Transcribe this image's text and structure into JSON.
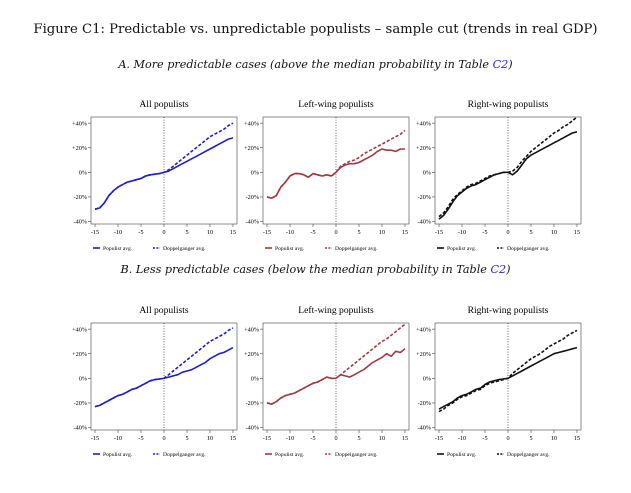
{
  "figure": {
    "title": "Figure C1:  Predictable vs. unpredictable populists – sample cut (trends in real GDP)",
    "panel_a": {
      "prefix": "A. More predictable cases (above the median probability in Table ",
      "ref": "C2",
      "suffix": ")"
    },
    "panel_b": {
      "prefix": "B. Less predictable cases (below the median probability in Table ",
      "ref": "C2",
      "suffix": ")"
    }
  },
  "colors": {
    "all": "#1f1fc8",
    "left": "#a03a42",
    "right": "#111111"
  },
  "chart_data": [
    {
      "type": "line",
      "panel": "A",
      "title": "All populists",
      "color_key": "all",
      "x": [
        -15,
        -14,
        -13,
        -12,
        -11,
        -10,
        -9,
        -8,
        -7,
        -6,
        -5,
        -4,
        -3,
        -2,
        -1,
        0,
        1,
        2,
        3,
        4,
        5,
        6,
        7,
        8,
        9,
        10,
        11,
        12,
        13,
        14,
        15
      ],
      "xticks": [
        -15,
        -10,
        -5,
        0,
        5,
        10,
        15
      ],
      "ylim": [
        -42,
        45
      ],
      "yticks": [
        -40,
        -20,
        0,
        20,
        40
      ],
      "ytick_labels": [
        "-40%",
        "-20%",
        "0%",
        "+20%",
        "+40%"
      ],
      "series": [
        {
          "name": "Populist avg.",
          "style": "solid",
          "values": [
            -30,
            -29,
            -25,
            -19,
            -15,
            -12,
            -10,
            -8,
            -7,
            -6,
            -5,
            -3,
            -2,
            -1.5,
            -1,
            0,
            1,
            3,
            5,
            7,
            9,
            11,
            13,
            15,
            17,
            19,
            21,
            23,
            25,
            27,
            28
          ]
        },
        {
          "name": "Doppelganger avg.",
          "style": "dashed",
          "values": [
            -30,
            -29,
            -25,
            -19,
            -15,
            -12,
            -10,
            -8,
            -7,
            -6,
            -5,
            -3,
            -2,
            -1.5,
            -1,
            0,
            2,
            5,
            8,
            11,
            14,
            17,
            20,
            23,
            26,
            29,
            31,
            33,
            35,
            38,
            40
          ]
        }
      ]
    },
    {
      "type": "line",
      "panel": "A",
      "title": "Left-wing populists",
      "color_key": "left",
      "x": [
        -15,
        -14,
        -13,
        -12,
        -11,
        -10,
        -9,
        -8,
        -7,
        -6,
        -5,
        -4,
        -3,
        -2,
        -1,
        0,
        1,
        2,
        3,
        4,
        5,
        6,
        7,
        8,
        9,
        10,
        11,
        12,
        13,
        14,
        15
      ],
      "xticks": [
        -15,
        -10,
        -5,
        0,
        5,
        10,
        15
      ],
      "ylim": [
        -42,
        45
      ],
      "yticks": [
        -40,
        -20,
        0,
        20,
        40
      ],
      "ytick_labels": [
        "-40%",
        "-20%",
        "0%",
        "+20%",
        "+40%"
      ],
      "series": [
        {
          "name": "Populist avg.",
          "style": "solid",
          "values": [
            -20,
            -21,
            -19,
            -12,
            -8,
            -3,
            -1,
            -1,
            -2,
            -4,
            -1,
            -2,
            -3,
            -2,
            -3,
            0,
            4,
            6,
            7,
            7,
            8,
            10,
            12,
            14,
            17,
            19,
            18,
            18,
            17,
            19,
            19
          ]
        },
        {
          "name": "Doppelganger avg.",
          "style": "dashed",
          "values": [
            -20,
            -21,
            -19,
            -12,
            -8,
            -3,
            -1,
            -1,
            -2,
            -4,
            -1,
            -2,
            -3,
            -2,
            -3,
            0,
            5,
            7,
            9,
            10,
            12,
            15,
            17,
            19,
            21,
            23,
            25,
            27,
            29,
            31,
            34
          ]
        }
      ]
    },
    {
      "type": "line",
      "panel": "A",
      "title": "Right-wing populists",
      "color_key": "right",
      "x": [
        -15,
        -14,
        -13,
        -12,
        -11,
        -10,
        -9,
        -8,
        -7,
        -6,
        -5,
        -4,
        -3,
        -2,
        -1,
        0,
        1,
        2,
        3,
        4,
        5,
        6,
        7,
        8,
        9,
        10,
        11,
        12,
        13,
        14,
        15
      ],
      "xticks": [
        -15,
        -10,
        -5,
        0,
        5,
        10,
        15
      ],
      "ylim": [
        -42,
        45
      ],
      "yticks": [
        -40,
        -20,
        0,
        20,
        40
      ],
      "ytick_labels": [
        "-40%",
        "-20%",
        "0%",
        "+20%",
        "+40%"
      ],
      "series": [
        {
          "name": "Populist avg.",
          "style": "solid",
          "values": [
            -38,
            -35,
            -30,
            -24,
            -19,
            -16,
            -13,
            -11,
            -10,
            -8,
            -6,
            -4,
            -2,
            -1,
            0,
            0,
            -2,
            1,
            6,
            11,
            14,
            16,
            18,
            20,
            22,
            24,
            26,
            28,
            30,
            32,
            33
          ]
        },
        {
          "name": "Doppelganger avg.",
          "style": "dashed",
          "values": [
            -36,
            -33,
            -28,
            -22,
            -18,
            -15,
            -12,
            -10,
            -9,
            -7,
            -5,
            -3,
            -2,
            -1,
            0,
            0,
            1,
            4,
            9,
            13,
            17,
            20,
            23,
            26,
            29,
            32,
            34,
            37,
            39,
            42,
            45
          ]
        }
      ]
    },
    {
      "type": "line",
      "panel": "B",
      "title": "All populists",
      "color_key": "all",
      "x": [
        -15,
        -14,
        -13,
        -12,
        -11,
        -10,
        -9,
        -8,
        -7,
        -6,
        -5,
        -4,
        -3,
        -2,
        -1,
        0,
        1,
        2,
        3,
        4,
        5,
        6,
        7,
        8,
        9,
        10,
        11,
        12,
        13,
        14,
        15
      ],
      "xticks": [
        -15,
        -10,
        -5,
        0,
        5,
        10,
        15
      ],
      "ylim": [
        -42,
        45
      ],
      "yticks": [
        -40,
        -20,
        0,
        20,
        40
      ],
      "ytick_labels": [
        "-40%",
        "-20%",
        "0%",
        "+20%",
        "+40%"
      ],
      "series": [
        {
          "name": "Populist avg.",
          "style": "solid",
          "values": [
            -23,
            -22,
            -20,
            -18,
            -16,
            -14,
            -13,
            -11,
            -9,
            -8,
            -6,
            -4,
            -2,
            -1,
            -0.5,
            0,
            1,
            2,
            3,
            5,
            6,
            7,
            9,
            11,
            13,
            16,
            18,
            20,
            21,
            23,
            25
          ]
        },
        {
          "name": "Doppelganger avg.",
          "style": "dashed",
          "values": [
            -23,
            -22,
            -20,
            -18,
            -16,
            -14,
            -13,
            -11,
            -9,
            -8,
            -6,
            -4,
            -2,
            -1,
            -0.5,
            0,
            3,
            6,
            9,
            12,
            15,
            18,
            21,
            24,
            27,
            30,
            32,
            34,
            36,
            39,
            41
          ]
        }
      ]
    },
    {
      "type": "line",
      "panel": "B",
      "title": "Left-wing populists",
      "color_key": "left",
      "x": [
        -15,
        -14,
        -13,
        -12,
        -11,
        -10,
        -9,
        -8,
        -7,
        -6,
        -5,
        -4,
        -3,
        -2,
        -1,
        0,
        1,
        2,
        3,
        4,
        5,
        6,
        7,
        8,
        9,
        10,
        11,
        12,
        13,
        14,
        15
      ],
      "xticks": [
        -15,
        -10,
        -5,
        0,
        5,
        10,
        15
      ],
      "ylim": [
        -42,
        45
      ],
      "yticks": [
        -40,
        -20,
        0,
        20,
        40
      ],
      "ytick_labels": [
        "-40%",
        "-20%",
        "0%",
        "+20%",
        "+40%"
      ],
      "series": [
        {
          "name": "Populist avg.",
          "style": "solid",
          "values": [
            -20,
            -21,
            -19,
            -16,
            -14,
            -13,
            -12,
            -10,
            -8,
            -6,
            -4,
            -3,
            -1,
            1,
            0,
            0,
            3,
            2,
            1,
            3,
            5,
            7,
            10,
            13,
            15,
            17,
            20,
            18,
            22,
            21,
            24
          ]
        },
        {
          "name": "Doppelganger avg.",
          "style": "dashed",
          "values": [
            -20,
            -21,
            -19,
            -16,
            -14,
            -13,
            -12,
            -10,
            -8,
            -6,
            -4,
            -3,
            -1,
            1,
            0,
            0,
            3,
            6,
            9,
            12,
            15,
            18,
            21,
            24,
            27,
            30,
            32,
            35,
            38,
            41,
            44
          ]
        }
      ]
    },
    {
      "type": "line",
      "panel": "B",
      "title": "Right-wing populists",
      "color_key": "right",
      "x": [
        -15,
        -14,
        -13,
        -12,
        -11,
        -10,
        -9,
        -8,
        -7,
        -6,
        -5,
        -4,
        -3,
        -2,
        -1,
        0,
        1,
        2,
        3,
        4,
        5,
        6,
        7,
        8,
        9,
        10,
        11,
        12,
        13,
        14,
        15
      ],
      "xticks": [
        -15,
        -10,
        -5,
        0,
        5,
        10,
        15
      ],
      "ylim": [
        -42,
        45
      ],
      "yticks": [
        -40,
        -20,
        0,
        20,
        40
      ],
      "ytick_labels": [
        "-40%",
        "-20%",
        "0%",
        "+20%",
        "+40%"
      ],
      "series": [
        {
          "name": "Populist avg.",
          "style": "solid",
          "values": [
            -25,
            -23,
            -21,
            -19,
            -16,
            -14,
            -13,
            -11,
            -9,
            -8,
            -5,
            -3,
            -2,
            -1,
            -0.5,
            0,
            2,
            4,
            6,
            8,
            10,
            12,
            14,
            16,
            18,
            20,
            21,
            22,
            23,
            24,
            25
          ]
        },
        {
          "name": "Doppelganger avg.",
          "style": "dashed",
          "values": [
            -27,
            -25,
            -22,
            -20,
            -17,
            -15,
            -14,
            -12,
            -10,
            -9,
            -6,
            -4,
            -3,
            -2,
            -1,
            0,
            4,
            7,
            10,
            13,
            16,
            18,
            20,
            23,
            26,
            28,
            30,
            32,
            35,
            37,
            39
          ]
        }
      ]
    }
  ]
}
